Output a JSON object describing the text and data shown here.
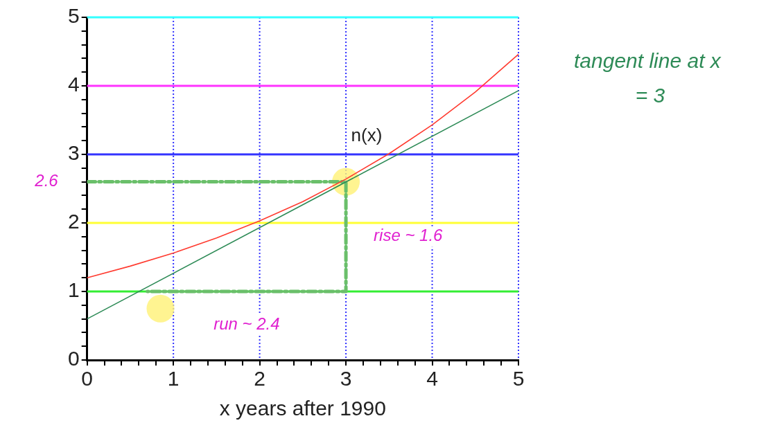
{
  "chart_data": {
    "type": "line",
    "xlabel": "x years after 1990",
    "xlim": [
      0,
      5
    ],
    "ylim": [
      0,
      5
    ],
    "xticks": [
      0,
      {
        "value": 0.2,
        "label": null
      },
      {
        "value": 0.4,
        "label": null
      },
      {
        "value": 0.6,
        "label": null
      },
      {
        "value": 0.8,
        "label": null
      },
      1,
      {
        "value": 1.2,
        "label": null
      },
      {
        "value": 1.4,
        "label": null
      },
      {
        "value": 1.6,
        "label": null
      },
      {
        "value": 1.8,
        "label": null
      },
      2,
      {
        "value": 2.2,
        "label": null
      },
      {
        "value": 2.4,
        "label": null
      },
      {
        "value": 2.6,
        "label": null
      },
      {
        "value": 2.8,
        "label": null
      },
      3,
      {
        "value": 3.2,
        "label": null
      },
      {
        "value": 3.4,
        "label": null
      },
      {
        "value": 3.6,
        "label": null
      },
      {
        "value": 3.8,
        "label": null
      },
      4,
      {
        "value": 4.2,
        "label": null
      },
      {
        "value": 4.4,
        "label": null
      },
      {
        "value": 4.6,
        "label": null
      },
      {
        "value": 4.8,
        "label": null
      },
      5
    ],
    "yticks": [
      0,
      {
        "value": 0.2,
        "label": null
      },
      {
        "value": 0.4,
        "label": null
      },
      {
        "value": 0.6,
        "label": null
      },
      {
        "value": 0.8,
        "label": null
      },
      1,
      {
        "value": 1.2,
        "label": null
      },
      {
        "value": 1.4,
        "label": null
      },
      {
        "value": 1.6,
        "label": null
      },
      {
        "value": 1.8,
        "label": null
      },
      2,
      {
        "value": 2.2,
        "label": null
      },
      {
        "value": 2.4,
        "label": null
      },
      {
        "value": 2.6,
        "label": null
      },
      {
        "value": 2.8,
        "label": null
      },
      3,
      {
        "value": 3.2,
        "label": null
      },
      {
        "value": 3.4,
        "label": null
      },
      {
        "value": 3.6,
        "label": null
      },
      {
        "value": 3.8,
        "label": null
      },
      4,
      {
        "value": 4.2,
        "label": null
      },
      {
        "value": 4.4,
        "label": null
      },
      {
        "value": 4.6,
        "label": null
      },
      {
        "value": 4.8,
        "label": null
      },
      5
    ],
    "grid": "x",
    "legend": false,
    "marker": "none",
    "line_style": "solid",
    "series": [
      {
        "name": "n(x)",
        "color": "#ff3b30",
        "x": [
          0,
          0.5,
          1,
          1.5,
          2,
          2.5,
          3,
          3.5,
          4,
          4.5,
          5
        ],
        "values": [
          1.2,
          1.37,
          1.56,
          1.78,
          2.03,
          2.31,
          2.64,
          3.01,
          3.43,
          3.91,
          4.46
        ]
      },
      {
        "color": "#2e8b57",
        "x": [
          0,
          5
        ],
        "values": [
          0.6,
          3.93
        ]
      },
      {
        "color": "#6abf6a",
        "line_style": "dashed",
        "x": [
          0,
          3,
          3,
          0.7
        ],
        "values": [
          2.6,
          2.6,
          1,
          1
        ]
      },
      {
        "type": "scatter",
        "color": "#fff176",
        "marker": "circle",
        "x": [
          3,
          0.85
        ],
        "values": [
          2.6,
          0.75
        ]
      }
    ],
    "ref_lines": [
      {
        "axis": "y",
        "value": 1,
        "color": "#33ee33"
      },
      {
        "axis": "y",
        "value": 2,
        "color": "#ffff33"
      },
      {
        "axis": "y",
        "value": 3,
        "color": "#3333ff"
      },
      {
        "axis": "y",
        "value": 4,
        "color": "#ff33ff"
      },
      {
        "axis": "y",
        "value": 5,
        "color": "#33ffff"
      }
    ],
    "annotations": [
      {
        "text": "2.6",
        "x": 0,
        "y": 2.6
      },
      {
        "text": "rise ~ 1.6",
        "x": 3,
        "y": 1.8
      },
      {
        "text": "run ~ 2.4",
        "x": 1.85,
        "y": 1
      },
      "tangent line at x = 3"
    ]
  }
}
